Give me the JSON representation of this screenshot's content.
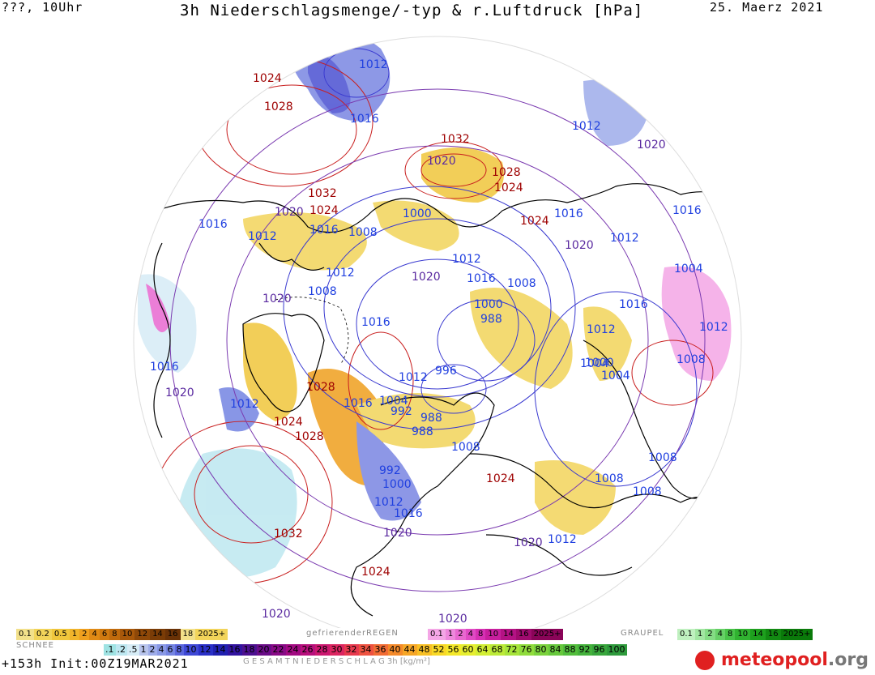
{
  "header": {
    "left": "???, 10Uhr",
    "title": "3h Niederschlagsmenge/-typ & r.Luftdruck [hPa]",
    "date": "25. Maerz 2021"
  },
  "footer": {
    "run": "+153h  Init:00Z19MAR2021",
    "total_label": "G E S A M T N I E D E R S C H L A G   3h   [kg/m²]"
  },
  "legend": {
    "snow_title": "SCHNEE",
    "snow_colors": [
      "#f2e08a",
      "#f2d45a",
      "#f0c63c",
      "#f0b42a",
      "#ef9f1e",
      "#e08a14",
      "#d07a10",
      "#c06a0c",
      "#a8580a",
      "#8e4808",
      "#7a3c06",
      "#6a3206"
    ],
    "snow_labels": [
      "0.1",
      "0.2",
      "0.5",
      "1",
      "2",
      "4",
      "6",
      "8",
      "10",
      "12",
      "14",
      "16",
      "18",
      "2025+"
    ],
    "freezing_title": "gefrierenderREGEN",
    "freezing_colors": [
      "#f4a6e6",
      "#ee88dc",
      "#e868d0",
      "#e04ac4",
      "#d630b4",
      "#c81e9e",
      "#b41284",
      "#a00a6e",
      "#8a0458",
      "#720044"
    ],
    "freezing_labels": [
      "0.1",
      "1",
      "2",
      "4",
      "8",
      "10",
      "14",
      "16",
      "2025+"
    ],
    "graupel_title": "GRAUPEL",
    "graupel_colors": [
      "#bff0bf",
      "#a2e6a2",
      "#84dc84",
      "#66d066",
      "#48c248",
      "#30b230",
      "#1ea01e",
      "#128a12",
      "#0a7a0a"
    ],
    "graupel_labels": [
      "0.1",
      "1",
      "2",
      "4",
      "8",
      "10",
      "14",
      "16",
      "2025+"
    ],
    "total_labels": [
      ".1",
      ".2",
      ".5",
      "1",
      "2",
      "4",
      "6",
      "8",
      "10",
      "12",
      "14",
      "16",
      "18",
      "20",
      "22",
      "24",
      "26",
      "28",
      "30",
      "32",
      "34",
      "36",
      "40",
      "44",
      "48",
      "52",
      "56",
      "60",
      "64",
      "68",
      "72",
      "76",
      "80",
      "84",
      "88",
      "92",
      "96",
      "100"
    ],
    "total_colors": [
      "#9fe3e3",
      "#bde7f0",
      "#d6ecf6",
      "#b8c4ec",
      "#9eacea",
      "#8898e6",
      "#7484e2",
      "#5a66de",
      "#3e48d6",
      "#2a30c8",
      "#2020b0",
      "#3214a0",
      "#4c1090",
      "#6a0c88",
      "#880a86",
      "#a20a82",
      "#b8107c",
      "#cc1870",
      "#dc2660",
      "#e83a4e",
      "#ee5240",
      "#f26c34",
      "#f48a2a",
      "#f6a626",
      "#f8c024",
      "#f8d826",
      "#f4e82a",
      "#e6ee30",
      "#d2ee34",
      "#bcea38",
      "#a6e43a",
      "#90dc3c",
      "#7ad23c",
      "#66c83c",
      "#52be3c",
      "#44b23c",
      "#38a63c",
      "#2e9a3c"
    ]
  },
  "logo": {
    "text_a": "meteo",
    "text_b": "pool",
    "text_c": ".org"
  },
  "isobars": [
    {
      "v": "1012",
      "c": "blue"
    },
    {
      "v": "1024",
      "c": "red"
    },
    {
      "v": "1028",
      "c": "red"
    },
    {
      "v": "1016",
      "c": "blue"
    },
    {
      "v": "1032",
      "c": "red"
    },
    {
      "v": "1012",
      "c": "blue"
    },
    {
      "v": "1020",
      "c": "purple"
    },
    {
      "v": "1020",
      "c": "purple"
    },
    {
      "v": "1028",
      "c": "red"
    },
    {
      "v": "1024",
      "c": "red"
    },
    {
      "v": "1032",
      "c": "red"
    },
    {
      "v": "1020",
      "c": "purple"
    },
    {
      "v": "1024",
      "c": "red"
    },
    {
      "v": "1016",
      "c": "blue"
    },
    {
      "v": "1008",
      "c": "blue"
    },
    {
      "v": "1000",
      "c": "blue"
    },
    {
      "v": "1024",
      "c": "red"
    },
    {
      "v": "1016",
      "c": "blue"
    },
    {
      "v": "1016",
      "c": "blue"
    },
    {
      "v": "1012",
      "c": "blue"
    },
    {
      "v": "1016",
      "c": "blue"
    },
    {
      "v": "1020",
      "c": "purple"
    },
    {
      "v": "1012",
      "c": "blue"
    },
    {
      "v": "1004",
      "c": "blue"
    },
    {
      "v": "1012",
      "c": "blue"
    },
    {
      "v": "1016",
      "c": "blue"
    },
    {
      "v": "1008",
      "c": "blue"
    },
    {
      "v": "1008",
      "c": "blue"
    },
    {
      "v": "1012",
      "c": "blue"
    },
    {
      "v": "1020",
      "c": "purple"
    },
    {
      "v": "1020",
      "c": "purple"
    },
    {
      "v": "1000",
      "c": "blue"
    },
    {
      "v": "988",
      "c": "blue"
    },
    {
      "v": "1016",
      "c": "blue"
    },
    {
      "v": "1012",
      "c": "blue"
    },
    {
      "v": "996",
      "c": "blue"
    },
    {
      "v": "1016",
      "c": "blue"
    },
    {
      "v": "1012",
      "c": "blue"
    },
    {
      "v": "1004",
      "c": "blue"
    },
    {
      "v": "1000",
      "c": "blue"
    },
    {
      "v": "1004",
      "c": "blue"
    },
    {
      "v": "1008",
      "c": "blue"
    },
    {
      "v": "1016",
      "c": "blue"
    },
    {
      "v": "1020",
      "c": "purple"
    },
    {
      "v": "1012",
      "c": "blue"
    },
    {
      "v": "1028",
      "c": "red"
    },
    {
      "v": "1016",
      "c": "blue"
    },
    {
      "v": "1004",
      "c": "blue"
    },
    {
      "v": "992",
      "c": "blue"
    },
    {
      "v": "988",
      "c": "blue"
    },
    {
      "v": "988",
      "c": "blue"
    },
    {
      "v": "1024",
      "c": "red"
    },
    {
      "v": "1028",
      "c": "red"
    },
    {
      "v": "1008",
      "c": "blue"
    },
    {
      "v": "1012",
      "c": "blue"
    },
    {
      "v": "1008",
      "c": "blue"
    },
    {
      "v": "1008",
      "c": "blue"
    },
    {
      "v": "992",
      "c": "blue"
    },
    {
      "v": "1000",
      "c": "blue"
    },
    {
      "v": "1024",
      "c": "red"
    },
    {
      "v": "1012",
      "c": "blue"
    },
    {
      "v": "1016",
      "c": "blue"
    },
    {
      "v": "1020",
      "c": "purple"
    },
    {
      "v": "1020",
      "c": "purple"
    },
    {
      "v": "1012",
      "c": "blue"
    },
    {
      "v": "1032",
      "c": "red"
    },
    {
      "v": "1024",
      "c": "red"
    },
    {
      "v": "1020",
      "c": "purple"
    },
    {
      "v": "1020",
      "c": "purple"
    },
    {
      "v": "1008",
      "c": "blue"
    }
  ]
}
